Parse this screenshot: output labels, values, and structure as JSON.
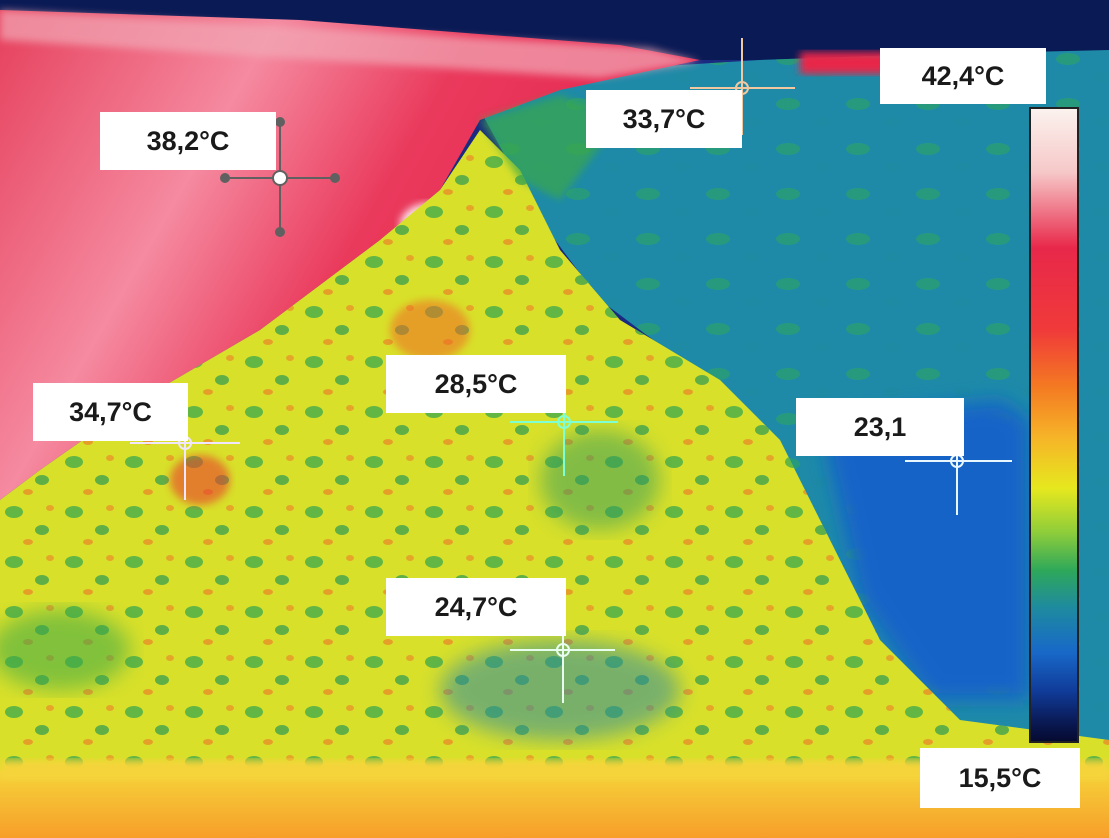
{
  "image": {
    "type": "thermal camera image",
    "palette": [
      "#fbf2ee",
      "#e8284a",
      "#f47a22",
      "#e6e81e",
      "#2ea85a",
      "#1868c8",
      "#0a1a55"
    ]
  },
  "measurements": [
    {
      "id": "sp1",
      "label": "38,2°C",
      "marker_color": "#606060"
    },
    {
      "id": "sp2",
      "label": "33,7°C",
      "marker_color": "#f2c8a0"
    },
    {
      "id": "sp3",
      "label": "34,7°C",
      "marker_color": "#f0e6ff"
    },
    {
      "id": "sp4",
      "label": "28,5°C",
      "marker_color": "#7fffd4"
    },
    {
      "id": "sp5",
      "label": "23,1",
      "marker_color": "#e8f6ff"
    },
    {
      "id": "sp6",
      "label": "24,7°C",
      "marker_color": "#e8fff0"
    }
  ],
  "color_scale": {
    "max_label": "42,4°C",
    "min_label": "15,5°C"
  }
}
